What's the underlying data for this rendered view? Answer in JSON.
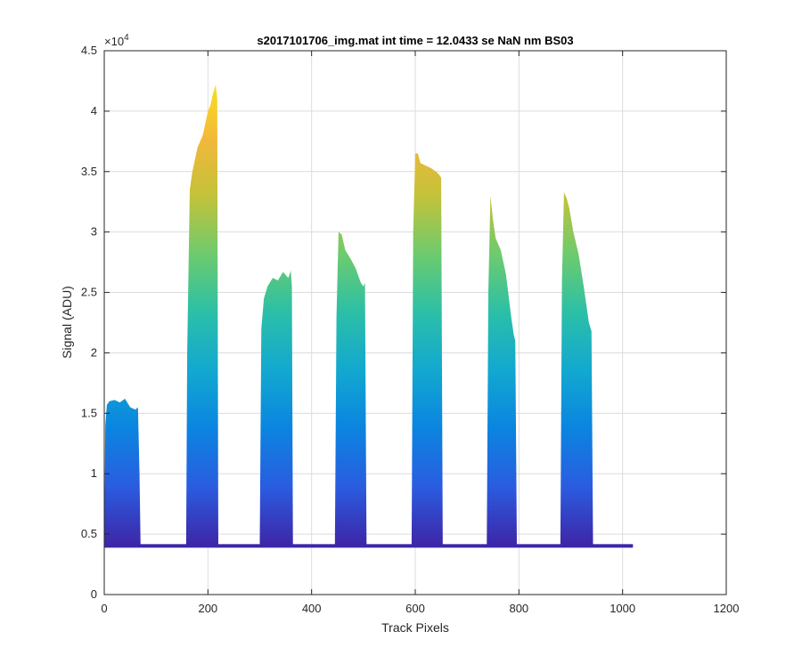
{
  "chart_data": {
    "type": "area",
    "title": "s2017101706_img.mat int time = 12.0433 se  NaN nm BS03",
    "xlabel": "Track Pixels",
    "ylabel": "Signal (ADU)",
    "xlim": [
      0,
      1200
    ],
    "ylim": [
      0,
      45000
    ],
    "y_exponent_label": "×10",
    "y_exponent_power": "4",
    "xticks": [
      0,
      200,
      400,
      600,
      800,
      1000,
      1200
    ],
    "xtick_labels": [
      "0",
      "200",
      "400",
      "600",
      "800",
      "1000",
      "1200"
    ],
    "yticks": [
      0,
      5000,
      10000,
      15000,
      20000,
      25000,
      30000,
      35000,
      40000,
      45000
    ],
    "ytick_labels": [
      "0",
      "0.5",
      "1",
      "1.5",
      "2",
      "2.5",
      "3",
      "3.5",
      "4",
      "4.5"
    ],
    "grid": true,
    "baseline": 4100,
    "colormap": [
      "#3e26a8",
      "#2a5ce0",
      "#0b84e0",
      "#12a8d0",
      "#2bbfa8",
      "#6ccb6e",
      "#c2c23a",
      "#f3b83b",
      "#f9e21c"
    ],
    "series": [
      {
        "x": [
          0,
          2,
          5,
          10,
          20,
          30,
          40,
          50,
          60,
          65,
          68,
          70
        ],
        "values": [
          4100,
          14000,
          15700,
          16000,
          16100,
          15900,
          16200,
          15500,
          15300,
          15500,
          10000,
          4200
        ]
      },
      {
        "x": [
          158,
          160,
          165,
          170,
          180,
          190,
          200,
          205,
          210,
          215,
          218,
          220
        ],
        "values": [
          4300,
          20000,
          33500,
          35000,
          37000,
          38000,
          40000,
          40500,
          41500,
          42200,
          41000,
          4300
        ]
      },
      {
        "x": [
          300,
          303,
          308,
          315,
          325,
          335,
          345,
          355,
          360,
          362,
          364
        ],
        "values": [
          4200,
          22000,
          24500,
          25500,
          26200,
          26000,
          26700,
          26200,
          26800,
          25500,
          4200
        ]
      },
      {
        "x": [
          445,
          448,
          452,
          458,
          465,
          475,
          485,
          495,
          500,
          503,
          506
        ],
        "values": [
          4200,
          23000,
          30000,
          29800,
          28500,
          27800,
          27000,
          25800,
          25500,
          25800,
          4200
        ]
      },
      {
        "x": [
          593,
          596,
          600,
          605,
          610,
          620,
          630,
          640,
          645,
          650,
          653
        ],
        "values": [
          4300,
          30000,
          36500,
          36500,
          35700,
          35500,
          35300,
          35000,
          34800,
          34500,
          4300
        ]
      },
      {
        "x": [
          738,
          741,
          745,
          750,
          755,
          765,
          775,
          785,
          790,
          793,
          796
        ],
        "values": [
          4200,
          25000,
          33000,
          31000,
          29500,
          28500,
          26500,
          23000,
          21500,
          21000,
          4200
        ]
      },
      {
        "x": [
          880,
          883,
          887,
          892,
          897,
          905,
          915,
          925,
          935,
          940,
          943
        ],
        "values": [
          4100,
          26000,
          33300,
          32800,
          32000,
          30000,
          28200,
          25500,
          22500,
          21800,
          4100
        ]
      }
    ]
  }
}
